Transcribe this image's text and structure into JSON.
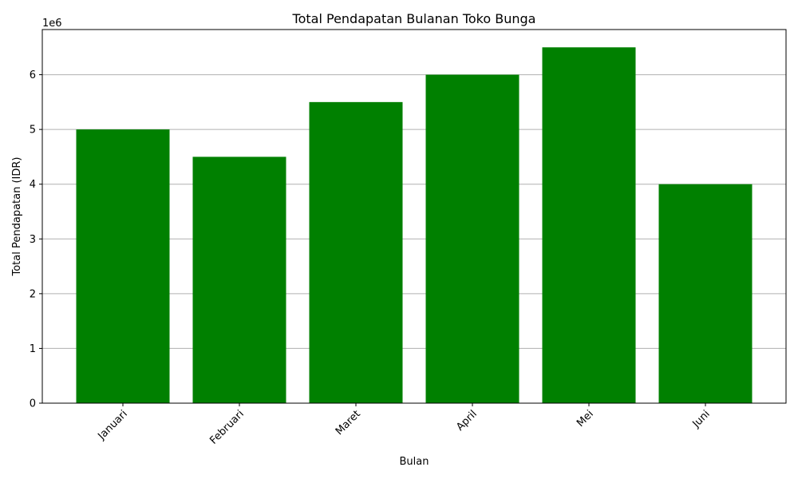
{
  "chart_data": {
    "type": "bar",
    "title": "Total Pendapatan Bulanan Toko Bunga",
    "xlabel": "Bulan",
    "ylabel": "Total Pendapatan (IDR)",
    "categories": [
      "Januari",
      "Februari",
      "Maret",
      "April",
      "Mei",
      "Juni"
    ],
    "values": [
      5000000,
      4500000,
      5500000,
      6000000,
      6500000,
      4000000
    ],
    "ylim": [
      0,
      6825000
    ],
    "yticks": [
      0,
      1000000,
      2000000,
      3000000,
      4000000,
      5000000,
      6000000
    ],
    "ytick_labels": [
      "0",
      "1",
      "2",
      "3",
      "4",
      "5",
      "6"
    ],
    "y_offset_label": "1e6",
    "bar_color": "#008000",
    "grid": "y-axis only",
    "xtick_rotation_deg": 45
  }
}
